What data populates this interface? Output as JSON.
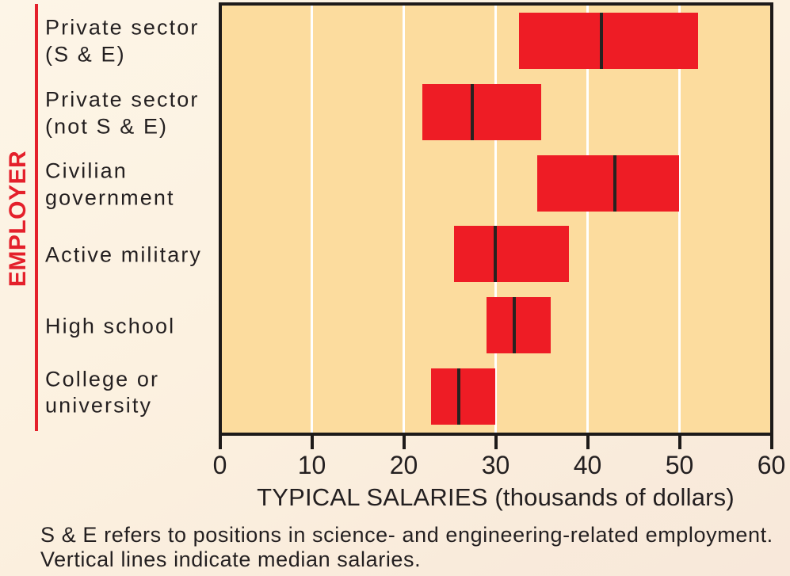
{
  "chart_data": {
    "type": "bar",
    "variant": "horizontal-range-with-median",
    "orientation": "horizontal",
    "ylabel": "EMPLOYER",
    "xlabel": "TYPICAL SALARIES (thousands of dollars)",
    "xlim": [
      0,
      60
    ],
    "xticks": [
      0,
      10,
      20,
      30,
      40,
      50,
      60
    ],
    "grid": "vertical-white-lines-at-ticks",
    "categories": [
      {
        "label_lines": [
          "Private sector",
          "(S & E)"
        ],
        "min": 32.5,
        "max": 52,
        "median": 41.5
      },
      {
        "label_lines": [
          "Private sector",
          "(not S & E)"
        ],
        "min": 22,
        "max": 35,
        "median": 27.5
      },
      {
        "label_lines": [
          "Civilian",
          "government"
        ],
        "min": 34.5,
        "max": 50,
        "median": 43
      },
      {
        "label_lines": [
          "Active military"
        ],
        "min": 25.5,
        "max": 38,
        "median": 30
      },
      {
        "label_lines": [
          "High school"
        ],
        "min": 29,
        "max": 36,
        "median": 32
      },
      {
        "label_lines": [
          "College or",
          "university"
        ],
        "min": 23,
        "max": 30,
        "median": 26
      }
    ],
    "footnote_lines": [
      "S & E refers to positions in science- and engineering-related employment.",
      "Vertical lines indicate median salaries."
    ]
  },
  "colors": {
    "background": "#fcf1e0",
    "plot_bg": "#fcdc9e",
    "bar": "#ee1c25",
    "accent": "#e4202b",
    "ink": "#1d1a19",
    "median": "#272220",
    "gridline": "#ffffff",
    "text": "#231f20"
  }
}
